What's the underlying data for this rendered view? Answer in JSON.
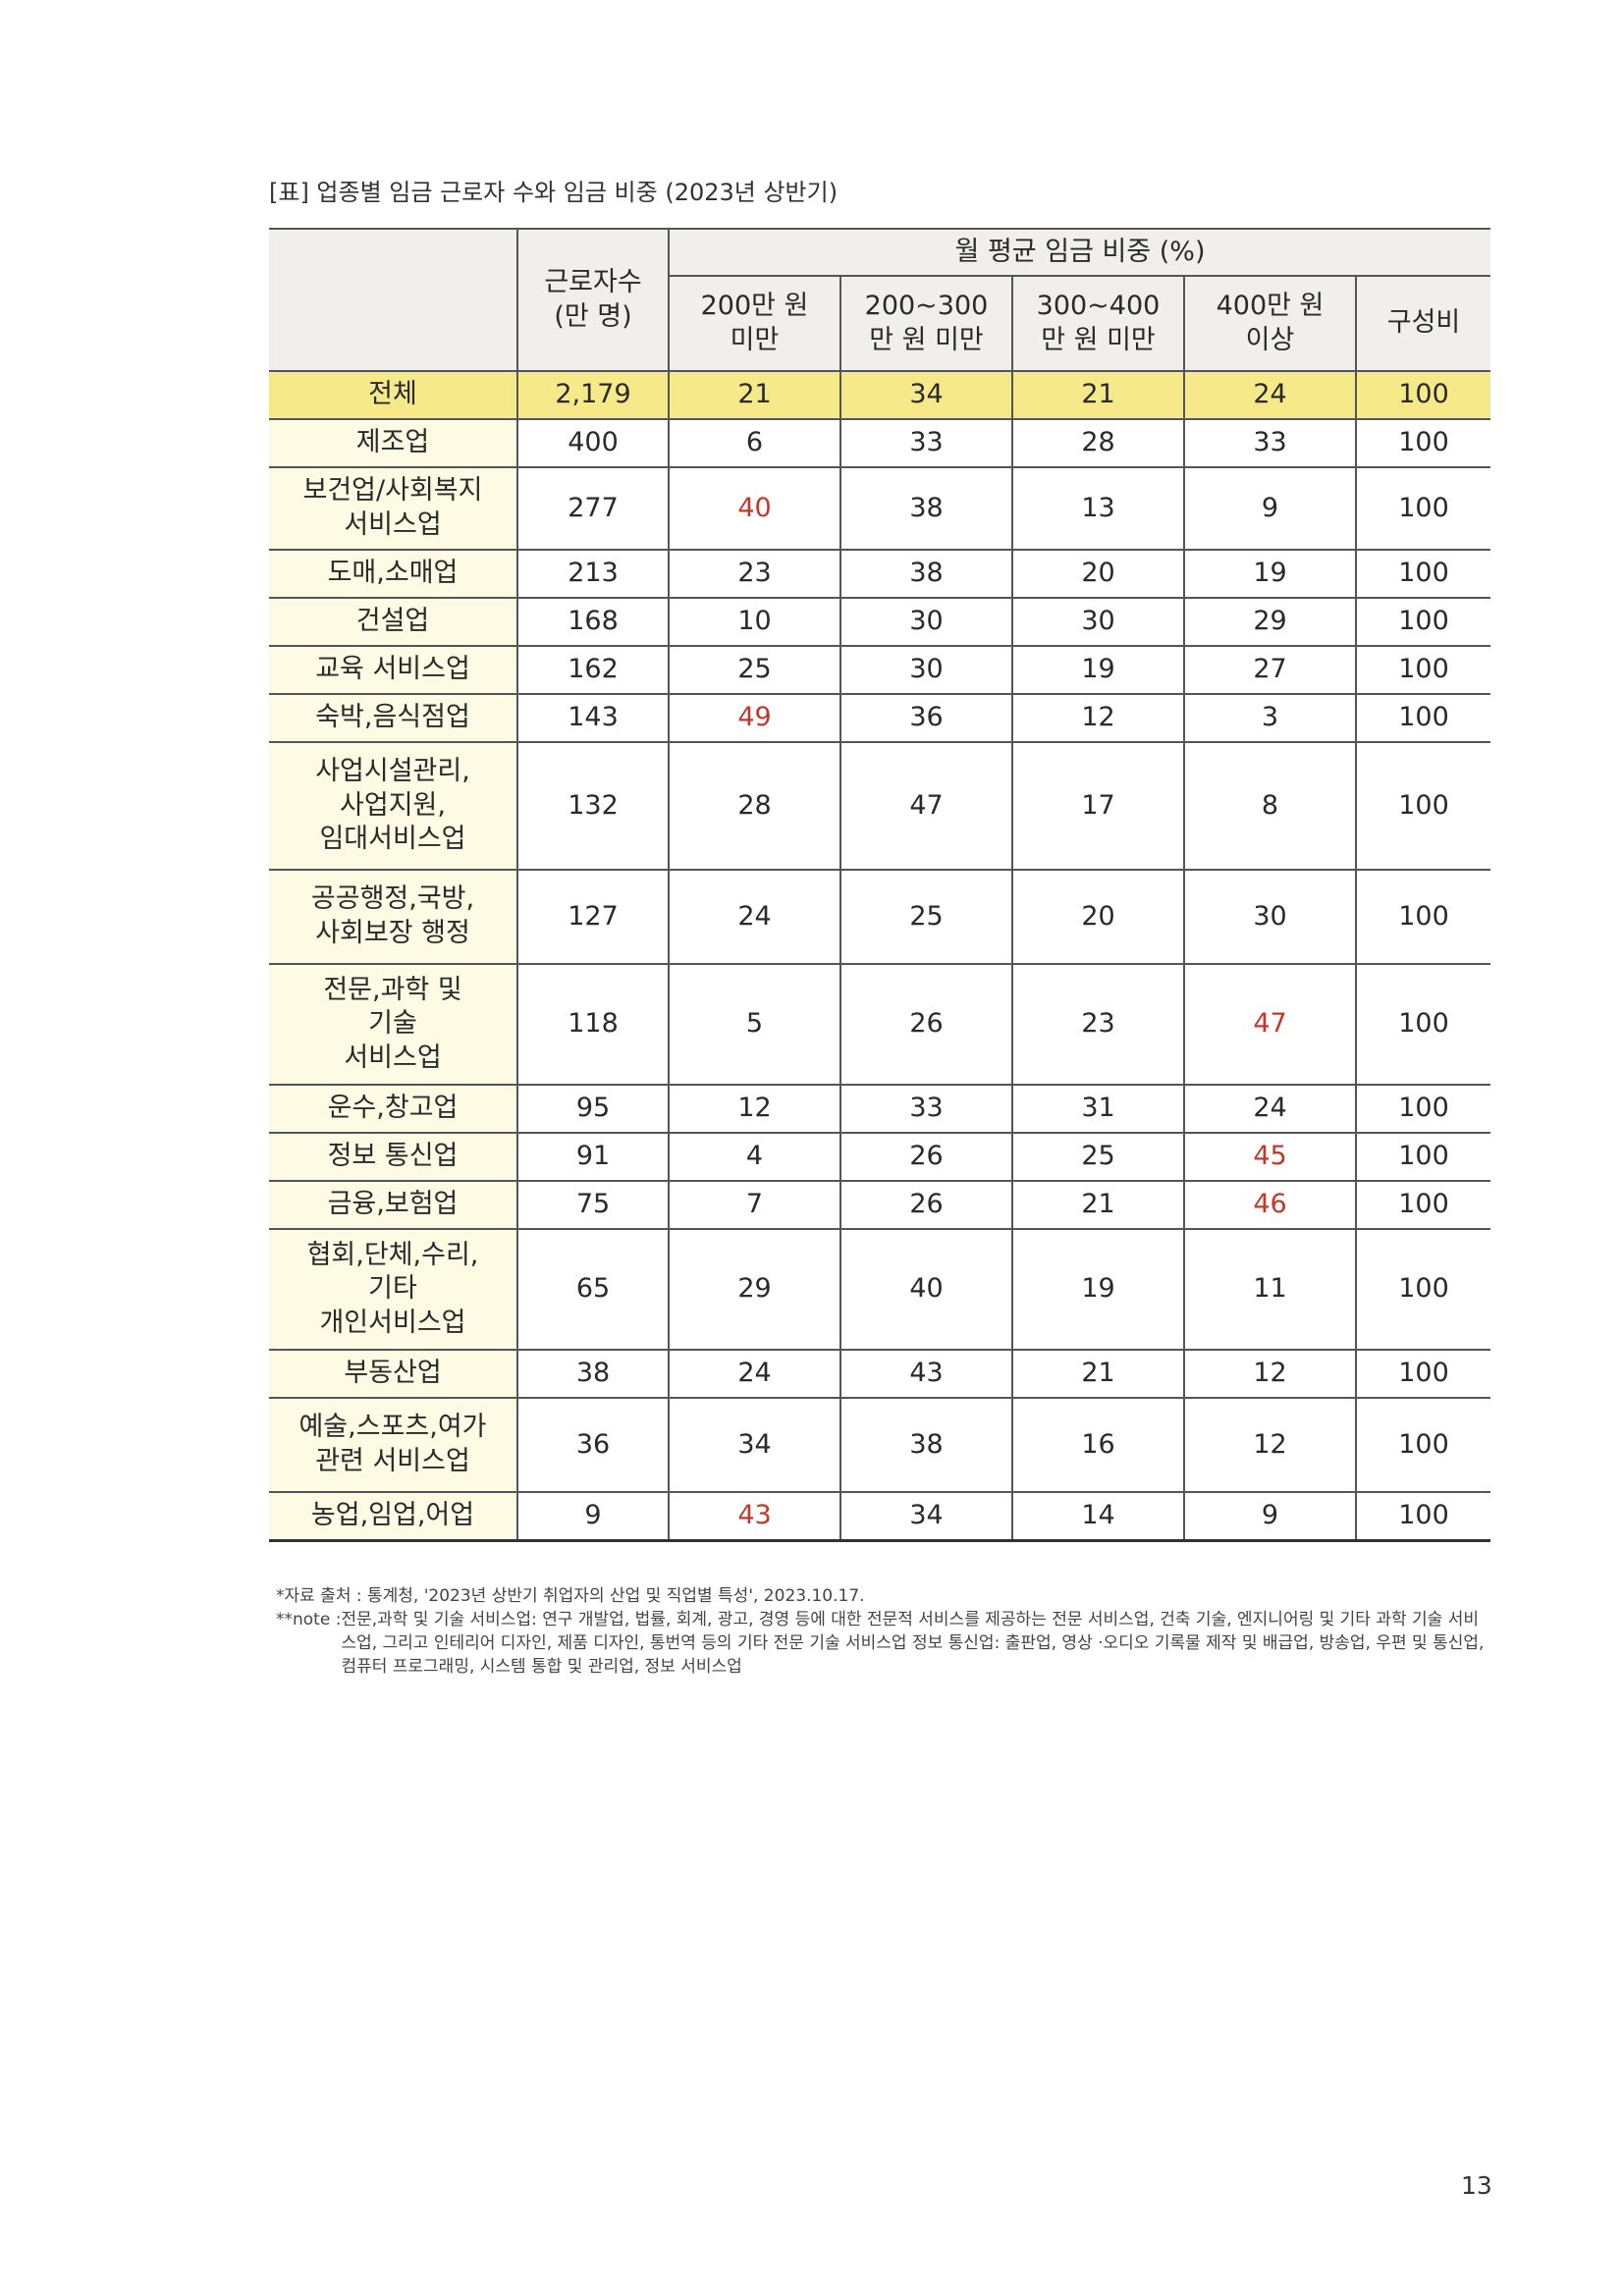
{
  "caption": "[표] 업종별 임금 근로자 수와 임금 비중 (2023년 상반기)",
  "headers": {
    "industry": "",
    "workers": [
      "근로자수",
      "(만 명)"
    ],
    "wage_group": "월 평균 임금 비중 (%)",
    "bands": [
      [
        "200만 원",
        "미만"
      ],
      [
        "200~300",
        "만 원 미만"
      ],
      [
        "300~400",
        "만 원 미만"
      ],
      [
        "400만 원",
        "이상"
      ],
      [
        "구성비"
      ]
    ]
  },
  "rows": [
    {
      "label": [
        "전체"
      ],
      "workers": "2,179",
      "v": [
        "21",
        "34",
        "21",
        "24",
        "100"
      ],
      "highlight": [],
      "total": true
    },
    {
      "label": [
        "제조업"
      ],
      "workers": "400",
      "v": [
        "6",
        "33",
        "28",
        "33",
        "100"
      ],
      "highlight": []
    },
    {
      "label": [
        "보건업/사회복지",
        "서비스업"
      ],
      "workers": "277",
      "v": [
        "40",
        "38",
        "13",
        "9",
        "100"
      ],
      "highlight": [
        0
      ]
    },
    {
      "label": [
        "도매,소매업"
      ],
      "workers": "213",
      "v": [
        "23",
        "38",
        "20",
        "19",
        "100"
      ],
      "highlight": []
    },
    {
      "label": [
        "건설업"
      ],
      "workers": "168",
      "v": [
        "10",
        "30",
        "30",
        "29",
        "100"
      ],
      "highlight": []
    },
    {
      "label": [
        "교육 서비스업"
      ],
      "workers": "162",
      "v": [
        "25",
        "30",
        "19",
        "27",
        "100"
      ],
      "highlight": []
    },
    {
      "label": [
        "숙박,음식점업"
      ],
      "workers": "143",
      "v": [
        "49",
        "36",
        "12",
        "3",
        "100"
      ],
      "highlight": [
        0
      ]
    },
    {
      "label": [
        "사업시설관리,",
        "사업지원,",
        "임대서비스업"
      ],
      "workers": "132",
      "v": [
        "28",
        "47",
        "17",
        "8",
        "100"
      ],
      "highlight": []
    },
    {
      "label": [
        "공공행정,국방,",
        "사회보장 행정"
      ],
      "workers": "127",
      "v": [
        "24",
        "25",
        "20",
        "30",
        "100"
      ],
      "highlight": []
    },
    {
      "label": [
        "전문,과학 및",
        "기술",
        "서비스업"
      ],
      "workers": "118",
      "v": [
        "5",
        "26",
        "23",
        "47",
        "100"
      ],
      "highlight": [
        3
      ]
    },
    {
      "label": [
        "운수,창고업"
      ],
      "workers": "95",
      "v": [
        "12",
        "33",
        "31",
        "24",
        "100"
      ],
      "highlight": []
    },
    {
      "label": [
        "정보 통신업"
      ],
      "workers": "91",
      "v": [
        "4",
        "26",
        "25",
        "45",
        "100"
      ],
      "highlight": [
        3
      ]
    },
    {
      "label": [
        "금융,보험업"
      ],
      "workers": "75",
      "v": [
        "7",
        "26",
        "21",
        "46",
        "100"
      ],
      "highlight": [
        3
      ]
    },
    {
      "label": [
        "협회,단체,수리,",
        "기타",
        "개인서비스업"
      ],
      "workers": "65",
      "v": [
        "29",
        "40",
        "19",
        "11",
        "100"
      ],
      "highlight": []
    },
    {
      "label": [
        "부동산업"
      ],
      "workers": "38",
      "v": [
        "24",
        "43",
        "21",
        "12",
        "100"
      ],
      "highlight": []
    },
    {
      "label": [
        "예술,스포츠,여가",
        "관련 서비스업"
      ],
      "workers": "36",
      "v": [
        "34",
        "38",
        "16",
        "12",
        "100"
      ],
      "highlight": []
    },
    {
      "label": [
        "농업,임업,어업"
      ],
      "workers": "9",
      "v": [
        "43",
        "34",
        "14",
        "9",
        "100"
      ],
      "highlight": [
        0
      ]
    }
  ],
  "notes": {
    "source": "*자료 출처 : 통계청, '2023년 상반기 취업자의 산업 및 직업별 특성', 2023.10.17.",
    "note_key": "**note : ",
    "note_text": "전문,과학 및 기술 서비스업: 연구 개발업, 법률, 회계, 광고, 경영 등에 대한 전문적 서비스를 제공하는 전문 서비스업, 건축 기술, 엔지니어링 및 기타 과학 기술 서비스업, 그리고 인테리어 디자인, 제품 디자인, 통번역 등의 기타 전문 기술 서비스업 정보 통신업: 출판업, 영상 ·오디오 기록물 제작 및 배급업, 방송업, 우편 및 통신업, 컴퓨터 프로그래밍, 시스템 통합 및 관리업, 정보 서비스업"
  },
  "page_number": "13",
  "colors": {
    "highlight_red": "#c0392b",
    "total_row": "#f5e98a",
    "label_bg": "#fdfbe3",
    "header_bg": "#f1efeb"
  }
}
